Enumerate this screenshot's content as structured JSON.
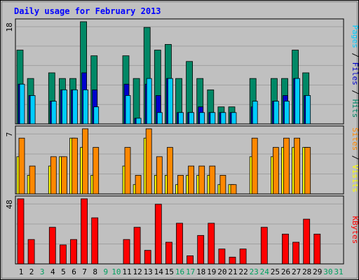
{
  "chart_data": {
    "type": "bar",
    "title": "Daily usage for February 2013",
    "categories": [
      "1",
      "2",
      "3",
      "4",
      "5",
      "6",
      "7",
      "8",
      "9",
      "10",
      "11",
      "12",
      "13",
      "14",
      "15",
      "16",
      "17",
      "18",
      "19",
      "20",
      "21",
      "22",
      "23",
      "24",
      "25",
      "26",
      "27",
      "28",
      "29",
      "30",
      "31"
    ],
    "weekend_days": [
      "3",
      "9",
      "10",
      "16",
      "17",
      "23",
      "24",
      "30",
      "31"
    ],
    "panels": [
      {
        "id": "hits",
        "ymax_label": "18",
        "ylim": [
          0,
          18
        ],
        "labels": [
          {
            "text": "Pages",
            "color": "#00ccff"
          },
          {
            "text": " / ",
            "color": "#000000"
          },
          {
            "text": "Files",
            "color": "#0000cc"
          },
          {
            "text": " / ",
            "color": "#000000"
          },
          {
            "text": "Hits",
            "color": "#008866"
          }
        ],
        "series": [
          {
            "name": "Hits",
            "color": "#008866",
            "values": [
              13,
              8,
              0,
              9,
              8,
              8,
              18,
              12,
              0,
              0,
              12,
              8,
              17,
              13,
              14,
              8,
              11,
              8,
              6,
              3,
              3,
              0,
              8,
              0,
              8,
              8,
              13,
              9,
              0,
              0,
              0
            ]
          },
          {
            "name": "Files",
            "color": "#0000cc",
            "values": [
              7,
              5,
              0,
              4,
              6,
              6,
              9,
              6,
              0,
              0,
              7,
              1,
              7,
              5,
              8,
              2,
              2,
              3,
              2,
              2,
              2,
              0,
              3,
              0,
              4,
              5,
              8,
              5,
              0,
              0,
              0
            ]
          },
          {
            "name": "Pages",
            "color": "#00ccff",
            "values": [
              7,
              5,
              0,
              4,
              6,
              6,
              6,
              3,
              0,
              0,
              5,
              1,
              8,
              2,
              8,
              2,
              2,
              2,
              2,
              2,
              2,
              0,
              4,
              0,
              4,
              4,
              8,
              5,
              0,
              0,
              0
            ]
          }
        ]
      },
      {
        "id": "visits",
        "ymax_label": "7",
        "ylim": [
          0,
          7
        ],
        "labels": [
          {
            "text": "Sites",
            "color": "#ff8800"
          },
          {
            "text": " / ",
            "color": "#000000"
          },
          {
            "text": "Visits",
            "color": "#ffff00"
          }
        ],
        "series": [
          {
            "name": "Visits",
            "color": "#ffff00",
            "values": [
              4,
              2,
              0,
              3,
              4,
              6,
              5,
              2,
              0,
              0,
              3,
              1,
              6,
              2,
              2,
              1,
              2,
              2,
              2,
              1,
              1,
              0,
              4,
              0,
              4,
              5,
              5,
              5,
              0,
              0,
              0
            ]
          },
          {
            "name": "Sites",
            "color": "#ff8800",
            "values": [
              6,
              3,
              0,
              4,
              4,
              6,
              7,
              5,
              0,
              0,
              5,
              2,
              7,
              4,
              5,
              2,
              3,
              3,
              3,
              2,
              1,
              0,
              6,
              0,
              5,
              6,
              6,
              5,
              0,
              0,
              0
            ]
          }
        ]
      },
      {
        "id": "kbytes",
        "ymax_label": "48",
        "ylim": [
          0,
          48
        ],
        "labels": [
          {
            "text": "KBytes",
            "color": "#ff0000"
          }
        ],
        "series": [
          {
            "name": "KBytes",
            "color": "#ff0000",
            "values": [
              48,
              18,
              0,
              27,
              14,
              18,
              48,
              34,
              0,
              0,
              18,
              27,
              10,
              44,
              16,
              30,
              6,
              21,
              30,
              11,
              5,
              11,
              0,
              27,
              0,
              22,
              16,
              33,
              22,
              0,
              0
            ]
          }
        ]
      }
    ]
  },
  "colors": {
    "background": "#c0c0c0",
    "title": "#0000ff",
    "weekday_label": "#000000",
    "weekend_label": "#00a060",
    "grid": "#a0a0a0",
    "bar_outline": "#000000"
  }
}
